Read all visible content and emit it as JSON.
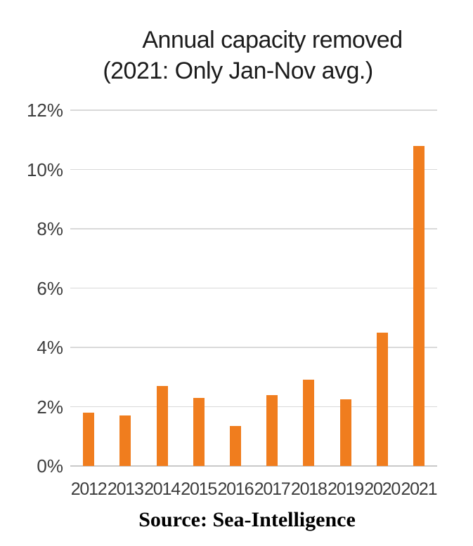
{
  "chart": {
    "title_line1": "Annual capacity removed",
    "title_line2": "(2021: Only Jan-Nov avg.)",
    "source": "Source: Sea-Intelligence"
  },
  "chart_data": {
    "type": "bar",
    "title": "Annual capacity removed (2021: Only Jan-Nov avg.)",
    "categories": [
      "2012",
      "2013",
      "2014",
      "2015",
      "2016",
      "2017",
      "2018",
      "2019",
      "2020",
      "2021"
    ],
    "values": [
      1.8,
      1.7,
      2.7,
      2.3,
      1.35,
      2.4,
      2.9,
      2.25,
      4.5,
      10.8
    ],
    "unit": "%",
    "xlabel": "",
    "ylabel": "",
    "ylim": [
      0,
      12
    ],
    "ytick_step": 2,
    "ytick_labels": [
      "0%",
      "2%",
      "4%",
      "6%",
      "8%",
      "10%",
      "12%"
    ],
    "grid": true,
    "legend": "none",
    "bar_color": "#f07d1e",
    "gridline_color": "#d9d9d9",
    "axis_text_color": "#3d3d3d",
    "title_color": "#1c1c1c",
    "background": "#ffffff",
    "source": "Source: Sea-Intelligence"
  }
}
